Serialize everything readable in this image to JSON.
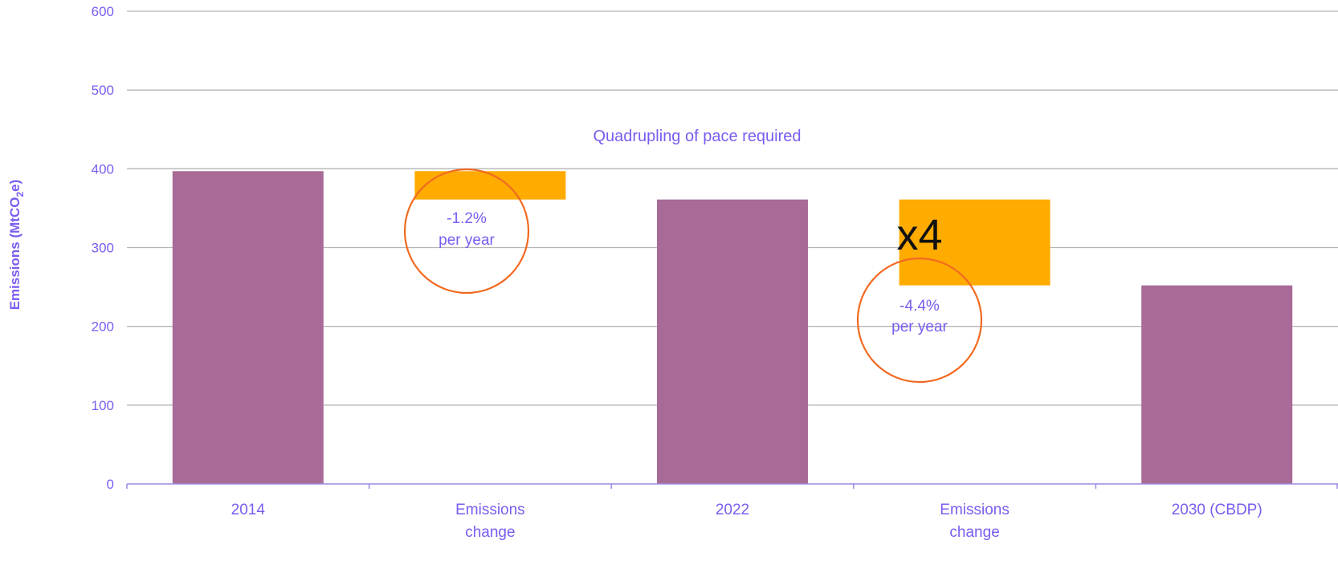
{
  "chart_data": {
    "type": "bar",
    "subtype": "waterfall",
    "categories": [
      "2014",
      "Emissions change",
      "2022",
      "Emissions change",
      "2030 (CBDP)"
    ],
    "category_lines": [
      [
        "2014"
      ],
      [
        "Emissions",
        "change"
      ],
      [
        "2022"
      ],
      [
        "Emissions",
        "change"
      ],
      [
        "2030 (CBDP)"
      ]
    ],
    "bars": [
      {
        "category": "2014",
        "kind": "total",
        "value": 397
      },
      {
        "category": "Emissions change",
        "kind": "change",
        "from": 397,
        "to": 361
      },
      {
        "category": "2022",
        "kind": "total",
        "value": 361
      },
      {
        "category": "Emissions change",
        "kind": "change",
        "from": 361,
        "to": 252
      },
      {
        "category": "2030 (CBDP)",
        "kind": "total",
        "value": 252
      }
    ],
    "ylabel": "Emissions (MtCO2e)",
    "ylabel_parts": {
      "main": "Emissions (MtCO",
      "sub": "2",
      "tail": "e)"
    },
    "ylim": [
      0,
      600
    ],
    "yticks": [
      "0",
      "100",
      "200",
      "300",
      "400",
      "500",
      "600"
    ],
    "grid": true,
    "colors": {
      "total": "#a86b98",
      "change": "#ffab00",
      "circle": "#f26a21",
      "text": "#7b5cf0",
      "grid": "#b5b5b5"
    },
    "annotations": {
      "headline": "Quadrupling of pace required",
      "rate1_line1": "-1.2%",
      "rate1_line2": "per year",
      "rate2_line1": "-4.4%",
      "rate2_line2": "per year",
      "multiplier": "x4"
    }
  }
}
